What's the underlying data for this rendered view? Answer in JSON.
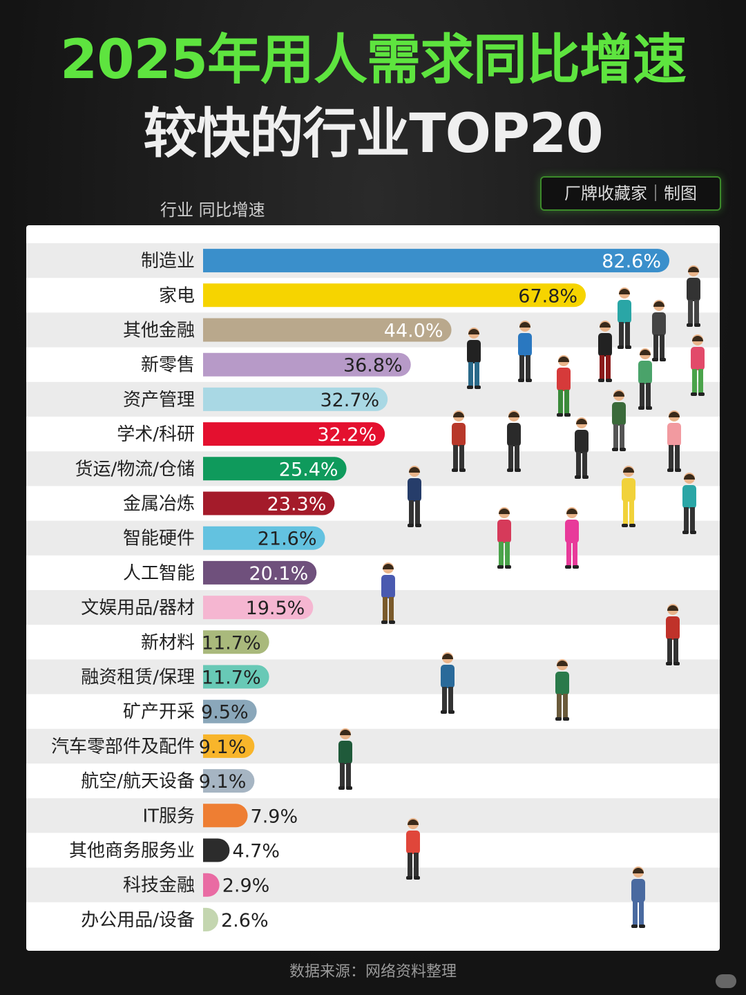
{
  "header": {
    "title_line1": "2025年用人需求同比增速",
    "title_line2": "较快的行业TOP20",
    "brand": "厂牌收藏家｜制图",
    "column_label": "行业  同比增速"
  },
  "footer": {
    "source": "数据来源：网络资料整理"
  },
  "colors": {
    "title_green": "#5ee43f",
    "row_stripe": "#ebebeb",
    "panel": "#ffffff"
  },
  "chart_data": {
    "type": "bar",
    "orientation": "horizontal",
    "title": "2025年用人需求同比增速较快的行业TOP20",
    "xlabel": "同比增速",
    "ylabel": "行业",
    "unit": "%",
    "xlim": [
      0,
      82.6
    ],
    "grid": false,
    "categories": [
      "制造业",
      "家电",
      "其他金融",
      "新零售",
      "资产管理",
      "学术/科研",
      "货运/物流/仓储",
      "金属冶炼",
      "智能硬件",
      "人工智能",
      "文娱用品/器材",
      "新材料",
      "融资租赁/保理",
      "矿产开采",
      "汽车零部件及配件",
      "航空/航天设备",
      "IT服务",
      "其他商务服务业",
      "科技金融",
      "办公用品/设备"
    ],
    "values": [
      82.6,
      67.8,
      44.0,
      36.8,
      32.7,
      32.2,
      25.4,
      23.3,
      21.6,
      20.1,
      19.5,
      11.7,
      11.7,
      9.5,
      9.1,
      9.1,
      7.9,
      4.7,
      2.9,
      2.6
    ],
    "labels": [
      "82.6%",
      "67.8%",
      "44.0%",
      "36.8%",
      "32.7%",
      "32.2%",
      "25.4%",
      "23.3%",
      "21.6%",
      "20.1%",
      "19.5%",
      "11.7%",
      "11.7%",
      "9.5%",
      "9.1%",
      "9.1%",
      "7.9%",
      "4.7%",
      "2.9%",
      "2.6%"
    ],
    "colors": [
      "#3a8fcb",
      "#f6d400",
      "#b9a88c",
      "#b79ac8",
      "#a9d8e4",
      "#e4102f",
      "#0f9a5c",
      "#a41b2a",
      "#63c2e0",
      "#6f507c",
      "#f5b6d1",
      "#a9b97c",
      "#68c9b6",
      "#8aa7ba",
      "#f8b52b",
      "#a6b5c3",
      "#ee7e33",
      "#2c2c2c",
      "#e96ba3",
      "#c4d6b0"
    ],
    "label_colors": [
      "#ffffff",
      "#222222",
      "#ffffff",
      "#222222",
      "#222222",
      "#ffffff",
      "#ffffff",
      "#ffffff",
      "#222222",
      "#ffffff",
      "#222222",
      "#222222",
      "#222222",
      "#222222",
      "#222222",
      "#222222",
      "#222222",
      "#222222",
      "#222222",
      "#222222"
    ]
  }
}
